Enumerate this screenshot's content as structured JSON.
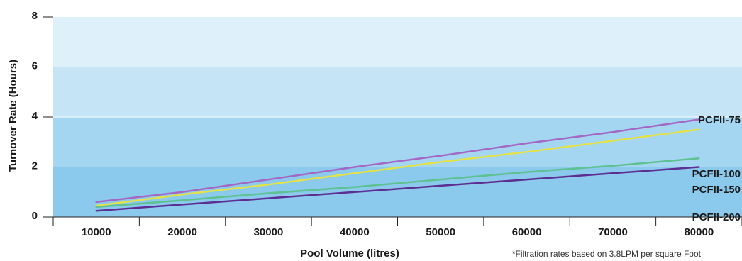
{
  "chart_data": {
    "type": "line",
    "xlabel": "Pool Volume (litres)",
    "ylabel": "Turnover Rate (Hours)",
    "note": "*Filtration rates based on 3.8LPM per square Foot",
    "x": [
      10000,
      20000,
      30000,
      40000,
      50000,
      60000,
      70000,
      80000
    ],
    "xlim": [
      5000,
      85000
    ],
    "ylim": [
      0,
      8
    ],
    "yticks": [
      0,
      2,
      4,
      6,
      8
    ],
    "xticks": [
      10000,
      20000,
      30000,
      40000,
      50000,
      60000,
      70000,
      80000
    ],
    "band_colors": [
      "#8ccaed",
      "#a5d6f1",
      "#c5e4f5",
      "#def0fa"
    ],
    "series": [
      {
        "name": "PCFII-75",
        "color": "#a468c4",
        "values": [
          0.6,
          1.0,
          1.5,
          2.0,
          2.45,
          2.95,
          3.4,
          3.9
        ]
      },
      {
        "name": "PCFII-100",
        "color": "#e2e24a",
        "values": [
          0.45,
          0.9,
          1.3,
          1.75,
          2.2,
          2.6,
          3.05,
          3.5
        ]
      },
      {
        "name": "PCFII-150",
        "color": "#5ec192",
        "values": [
          0.4,
          0.67,
          0.95,
          1.2,
          1.5,
          1.8,
          2.05,
          2.35
        ]
      },
      {
        "name": "PCFII-200",
        "color": "#5c2e91",
        "values": [
          0.25,
          0.5,
          0.75,
          1.0,
          1.25,
          1.5,
          1.75,
          2.0
        ]
      }
    ]
  }
}
